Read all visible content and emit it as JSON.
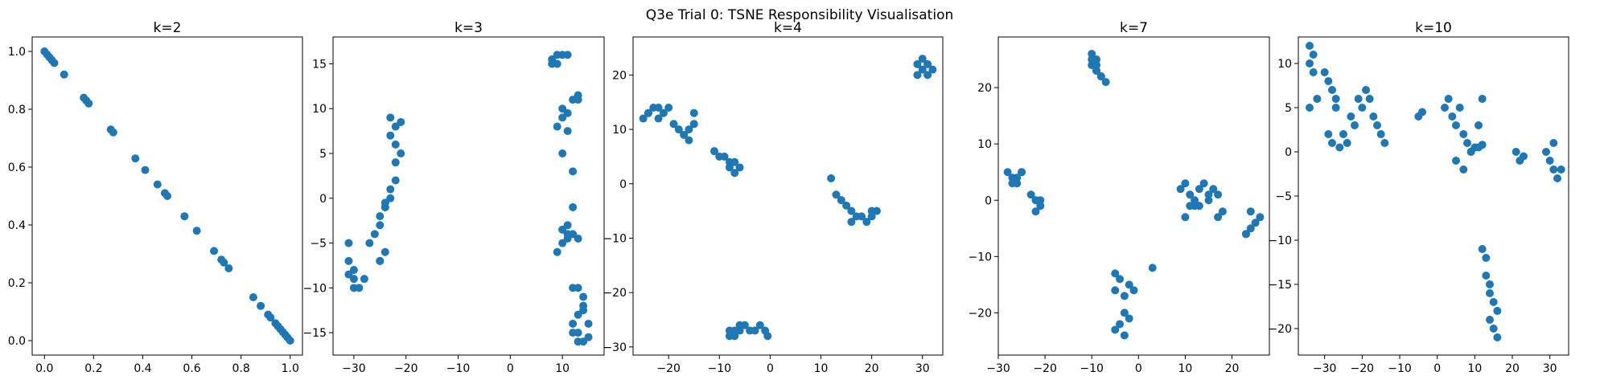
{
  "figure": {
    "suptitle": "Q3e Trial 0: TSNE Responsibility Visualisation",
    "marker_color": "#1f77b4"
  },
  "chart_data": [
    {
      "type": "scatter",
      "title": "k=2",
      "xlabel": "",
      "ylabel": "",
      "xlim": [
        -0.05,
        1.05
      ],
      "ylim": [
        -0.05,
        1.05
      ],
      "xticks": [
        0.0,
        0.2,
        0.4,
        0.6,
        0.8,
        1.0
      ],
      "yticks": [
        0.0,
        0.2,
        0.4,
        0.6,
        0.8,
        1.0
      ],
      "tick_decimals": 1,
      "grid": false,
      "x": [
        0.0,
        0.01,
        0.02,
        0.03,
        0.04,
        0.08,
        0.16,
        0.17,
        0.18,
        0.27,
        0.28,
        0.37,
        0.41,
        0.46,
        0.49,
        0.5,
        0.57,
        0.62,
        0.69,
        0.72,
        0.73,
        0.75,
        0.85,
        0.88,
        0.91,
        0.92,
        0.94,
        0.95,
        0.96,
        0.97,
        0.98,
        0.99,
        1.0
      ],
      "y": [
        1.0,
        0.99,
        0.98,
        0.97,
        0.96,
        0.92,
        0.84,
        0.83,
        0.82,
        0.73,
        0.72,
        0.63,
        0.59,
        0.54,
        0.51,
        0.5,
        0.43,
        0.38,
        0.31,
        0.28,
        0.27,
        0.25,
        0.15,
        0.12,
        0.09,
        0.08,
        0.06,
        0.05,
        0.04,
        0.03,
        0.02,
        0.01,
        0.0
      ]
    },
    {
      "type": "scatter",
      "title": "k=3",
      "xlabel": "",
      "ylabel": "",
      "xlim": [
        -34,
        18
      ],
      "ylim": [
        -17.5,
        18
      ],
      "xticks": [
        -30,
        -20,
        -10,
        0,
        10
      ],
      "yticks": [
        -15,
        -10,
        -5,
        0,
        5,
        10,
        15
      ],
      "tick_decimals": 0,
      "grid": false,
      "x": [
        -31,
        -31,
        -30,
        -31,
        -30,
        -30,
        -29,
        -28,
        -27,
        -26,
        -25,
        -25,
        -24,
        -23,
        -24,
        -23,
        -22,
        -22,
        -21,
        -22,
        -23,
        -22,
        -21,
        -23,
        -24,
        -25,
        -25,
        -24,
        8,
        9,
        8,
        10,
        9,
        11,
        10,
        12,
        13,
        13,
        9,
        10,
        11,
        11,
        10,
        12,
        12,
        11,
        11,
        10,
        9,
        10,
        11,
        12,
        13,
        12,
        14,
        14,
        12,
        13,
        15,
        13,
        14,
        15,
        12,
        13,
        14,
        13
      ],
      "y": [
        -5,
        -7,
        -8,
        -8.5,
        -9,
        -10,
        -10,
        -9,
        -5,
        -4,
        -3,
        -2,
        -1,
        0,
        -0.5,
        1,
        2,
        4,
        5,
        6,
        7,
        8,
        8.5,
        9,
        -6,
        -7,
        -7,
        -1,
        15,
        16,
        15.5,
        16,
        15,
        16,
        10,
        11,
        11.5,
        11,
        8,
        9,
        9.5,
        7.5,
        5,
        3,
        -1,
        -4,
        -4.5,
        -5,
        -6,
        -3.5,
        -3,
        -4,
        -4.5,
        -10,
        -11,
        -12,
        -14,
        -15,
        -15.5,
        -16,
        -12.5,
        -14,
        -15,
        -13,
        -16,
        -10
      ]
    },
    {
      "type": "scatter",
      "title": "k=4",
      "xlabel": "",
      "ylabel": "",
      "xlim": [
        -27,
        34
      ],
      "ylim": [
        -31.5,
        27
      ],
      "xticks": [
        -20,
        -10,
        0,
        10,
        20,
        30
      ],
      "yticks": [
        -30,
        -20,
        -10,
        0,
        10,
        20
      ],
      "tick_decimals": 0,
      "grid": false,
      "x": [
        -25,
        -24,
        -23,
        -22,
        -21,
        -19,
        -18,
        -17,
        -16,
        -15,
        -16,
        -15,
        -24,
        -22,
        -20,
        -11,
        -10,
        -9,
        -8,
        -8,
        -7,
        -7,
        -6,
        -7,
        -8,
        -6,
        -5,
        -4,
        -3,
        -2,
        -1,
        -0.5,
        -6,
        -7,
        -8,
        12,
        13,
        14,
        15,
        16,
        17,
        18,
        19,
        20,
        20,
        21,
        16,
        29,
        30,
        31,
        32,
        30,
        31,
        29
      ],
      "y": [
        12,
        13,
        14,
        14,
        13,
        11,
        10,
        9,
        10,
        11,
        8,
        13,
        13,
        12,
        14,
        6,
        5,
        5,
        4,
        3,
        4,
        2,
        3,
        -27,
        -28,
        -27,
        -26,
        -27,
        -27,
        -26,
        -27,
        -28,
        -26,
        -28,
        -27,
        1,
        -2,
        -3,
        -4,
        -5,
        -6,
        -6,
        -7,
        -5,
        -6,
        -5,
        -7,
        20,
        21,
        22,
        21,
        23,
        20,
        22
      ],
      "note_clusters": 5
    },
    {
      "type": "scatter",
      "title": "k=7",
      "xlabel": "",
      "ylabel": "",
      "xlim": [
        -30,
        28
      ],
      "ylim": [
        -27.5,
        29
      ],
      "xticks": [
        -30,
        -20,
        -10,
        0,
        10,
        20
      ],
      "yticks": [
        -20,
        -10,
        0,
        10,
        20
      ],
      "tick_decimals": 0,
      "grid": false,
      "x": [
        -28,
        -27,
        -26,
        -25,
        -27,
        -26,
        -25,
        -23,
        -22,
        -21,
        -22,
        -21,
        -10,
        -9,
        -10,
        -9,
        -8,
        -7,
        -8,
        -9,
        -10,
        -9,
        -5,
        -4,
        -5,
        -3,
        -2,
        -1,
        -3,
        -4,
        -5,
        -3,
        -2,
        3,
        9,
        10,
        11,
        12,
        13,
        14,
        15,
        16,
        17,
        18,
        12,
        10,
        11,
        13,
        15,
        17,
        23,
        24,
        25,
        26,
        24,
        23
      ],
      "y": [
        5,
        4,
        3,
        5,
        3,
        4,
        5,
        1,
        0,
        -1,
        -2,
        0,
        26,
        25,
        24,
        23,
        22,
        21,
        22,
        24,
        25,
        23,
        -13,
        -14,
        -16,
        -17,
        -15,
        -16,
        -20,
        -22,
        -23,
        -24,
        -21,
        -12,
        2,
        3,
        1,
        0,
        2,
        3,
        1,
        2,
        1,
        -2,
        -1,
        -3,
        -1,
        -1,
        0,
        -3,
        -6,
        -5,
        -4,
        -3,
        -2,
        -6
      ]
    },
    {
      "type": "scatter",
      "title": "k=10",
      "xlabel": "",
      "ylabel": "",
      "xlim": [
        -37,
        35
      ],
      "ylim": [
        -23,
        13
      ],
      "xticks": [
        -30,
        -20,
        -10,
        0,
        10,
        20,
        30
      ],
      "yticks": [
        -20,
        -15,
        -10,
        -5,
        0,
        5,
        10
      ],
      "tick_decimals": 0,
      "grid": false,
      "x": [
        -34,
        -33,
        -34,
        -33,
        -32,
        -34,
        -30,
        -29,
        -28,
        -27,
        -29,
        -28,
        -27,
        -26,
        -25,
        -24,
        -23,
        -22,
        -21,
        -20,
        -19,
        -18,
        -17,
        -16,
        -15,
        -14,
        -5,
        -4,
        2,
        3,
        4,
        5,
        6,
        7,
        8,
        9,
        10,
        11,
        12,
        5,
        7,
        9,
        11,
        12,
        21,
        22,
        23,
        29,
        30,
        31,
        32,
        33,
        31,
        12,
        13,
        14,
        15,
        16,
        14,
        15,
        16,
        13,
        14
      ],
      "y": [
        12,
        11,
        10,
        9,
        6,
        5,
        9,
        8,
        7,
        6,
        2,
        1,
        5,
        0.5,
        2,
        1,
        4,
        3,
        6,
        5,
        7,
        6,
        4,
        3,
        2,
        1,
        4,
        4.5,
        5,
        6,
        4,
        3,
        5,
        2,
        1,
        0,
        0.5,
        3,
        6,
        -1,
        -2,
        0,
        0.5,
        0.8,
        0,
        -1,
        -0.5,
        0,
        -1,
        -2,
        -3,
        -2,
        1,
        -11,
        -12,
        -15,
        -17,
        -18,
        -19,
        -20,
        -21,
        -14,
        -16
      ]
    }
  ]
}
